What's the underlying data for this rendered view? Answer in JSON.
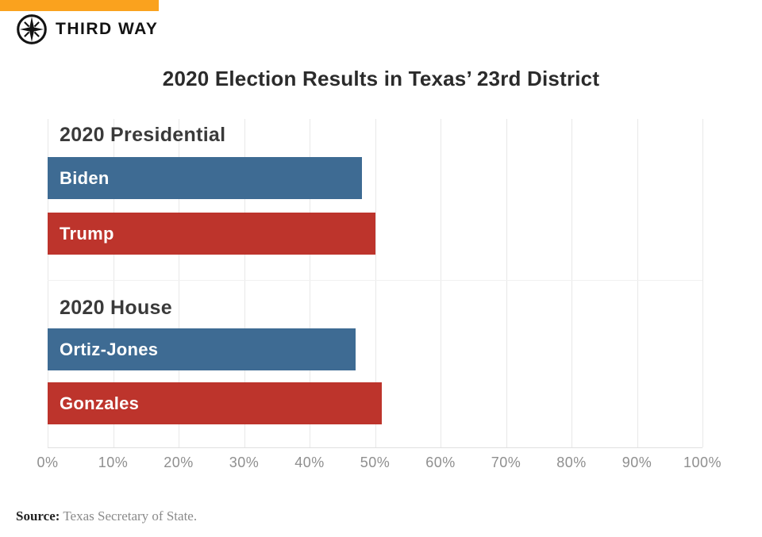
{
  "brand": {
    "name": "THIRD WAY",
    "accent_color": "#FAA21E",
    "logo_icon": "compass-star-icon"
  },
  "title": "2020 Election Results in Texas’ 23rd District",
  "chart_data": {
    "type": "bar",
    "orientation": "horizontal",
    "title": "2020 Election Results in Texas’ 23rd District",
    "xlabel": "",
    "ylabel": "",
    "xlim": [
      0,
      100
    ],
    "grid": true,
    "legend": "none",
    "groups": [
      {
        "label": "2020 Presidential",
        "bars": [
          {
            "label": "Biden",
            "value": 48,
            "color": "#3E6B93"
          },
          {
            "label": "Trump",
            "value": 50,
            "color": "#BD342C"
          }
        ]
      },
      {
        "label": "2020 House",
        "bars": [
          {
            "label": "Ortiz-Jones",
            "value": 47,
            "color": "#3E6B93"
          },
          {
            "label": "Gonzales",
            "value": 51,
            "color": "#BD342C"
          }
        ]
      }
    ],
    "x_axis": {
      "min": 0,
      "max": 100,
      "tick_step": 10,
      "tick_labels": [
        "0%",
        "10%",
        "20%",
        "30%",
        "40%",
        "50%",
        "60%",
        "70%",
        "80%",
        "90%",
        "100%"
      ]
    },
    "bar_color_democrat": "#3E6B93",
    "bar_color_republican": "#BD342C"
  },
  "source": {
    "label": "Source:",
    "text": " Texas Secretary of State."
  }
}
